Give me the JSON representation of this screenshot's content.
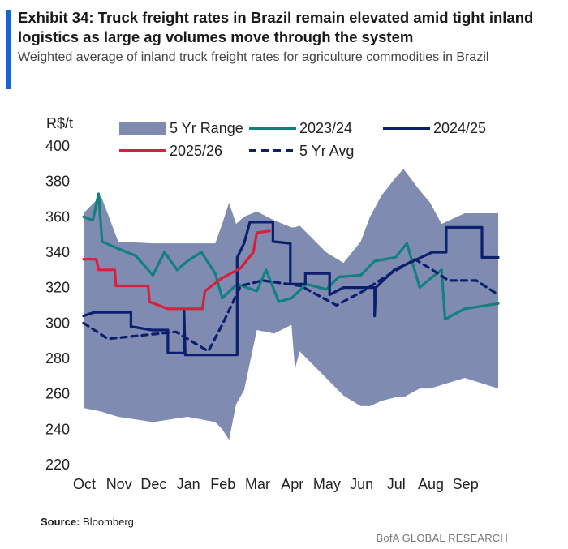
{
  "title": "Exhibit 34: Truck freight rates in Brazil remain elevated amid tight inland logistics as large ag volumes move through the system",
  "subtitle": "Weighted average of inland truck freight rates for agriculture commodities in Brazil",
  "source_label": "Source:",
  "source_value": "Bloomberg",
  "brand": "BofA GLOBAL RESEARCH",
  "chart_data": {
    "type": "line",
    "title": "Exhibit 34: Truck freight rates in Brazil remain elevated amid tight inland logistics as large ag volumes move through the system",
    "ylabel": "R$/t",
    "ylim": [
      220,
      400
    ],
    "yticks": [
      220,
      240,
      260,
      280,
      300,
      320,
      340,
      360,
      380,
      400
    ],
    "xticks": [
      "Oct",
      "Nov",
      "Dec",
      "Jan",
      "Feb",
      "Mar",
      "Apr",
      "May",
      "Jun",
      "Jul",
      "Aug",
      "Sep"
    ],
    "grid": false,
    "legend": "top",
    "colors": {
      "range": "#7f8bb0",
      "s2324": "#12807f",
      "s2425": "#0b1f6e",
      "s2526": "#d6203c",
      "avg": "#0b1f6e"
    },
    "range": {
      "name": "5 Yr Range",
      "points": [
        [
          "Oct 1",
          362,
          252
        ],
        [
          "Oct 16",
          372,
          250
        ],
        [
          "Nov 1",
          346,
          247
        ],
        [
          "Dec 1",
          345,
          244
        ],
        [
          "Jan 1",
          345,
          247
        ],
        [
          "Jan 25",
          345,
          244
        ],
        [
          "Feb 1",
          356,
          240
        ],
        [
          "Feb 7",
          368,
          234
        ],
        [
          "Feb 13",
          356,
          254
        ],
        [
          "Feb 20",
          360,
          262
        ],
        [
          "Mar 1",
          363,
          296
        ],
        [
          "Mar 16",
          358,
          294
        ],
        [
          "Apr 1",
          354,
          299
        ],
        [
          "Apr 4",
          354,
          274
        ],
        [
          "Apr 8",
          355,
          284
        ],
        [
          "May 1",
          340,
          269
        ],
        [
          "May 16",
          334,
          259
        ],
        [
          "Jun 1",
          346,
          253
        ],
        [
          "Jun 9",
          360,
          253
        ],
        [
          "Jun 19",
          372,
          256
        ],
        [
          "Jul 1",
          382,
          258
        ],
        [
          "Jul 8",
          387,
          258
        ],
        [
          "Jul 22",
          375,
          263
        ],
        [
          "Aug 1",
          368,
          263
        ],
        [
          "Aug 11",
          356,
          265
        ],
        [
          "Sep 1",
          362,
          269
        ],
        [
          "Sep 30",
          362,
          263
        ]
      ]
    },
    "series": [
      {
        "name": "2023/24",
        "key": "s2324",
        "dashed": false,
        "points": [
          [
            "Oct 1",
            360
          ],
          [
            "Oct 9",
            358
          ],
          [
            "Oct 14",
            373
          ],
          [
            "Oct 17",
            346
          ],
          [
            "Nov 1",
            342
          ],
          [
            "Nov 16",
            338
          ],
          [
            "Dec 1",
            327
          ],
          [
            "Dec 11",
            340
          ],
          [
            "Dec 22",
            330
          ],
          [
            "Jan 1",
            335
          ],
          [
            "Jan 13",
            340
          ],
          [
            "Jan 25",
            328
          ],
          [
            "Feb 1",
            314
          ],
          [
            "Feb 14",
            322
          ],
          [
            "Mar 1",
            318
          ],
          [
            "Mar 9",
            330
          ],
          [
            "Mar 20",
            312
          ],
          [
            "Apr 1",
            314
          ],
          [
            "Apr 14",
            322
          ],
          [
            "May 1",
            319
          ],
          [
            "May 12",
            326
          ],
          [
            "Jun 1",
            327
          ],
          [
            "Jun 13",
            335
          ],
          [
            "Jul 1",
            337
          ],
          [
            "Jul 11",
            345
          ],
          [
            "Jul 22",
            320
          ],
          [
            "Aug 1",
            325
          ],
          [
            "Aug 11",
            330
          ],
          [
            "Aug 14",
            302
          ],
          [
            "Aug 22",
            305
          ],
          [
            "Sep 1",
            308
          ],
          [
            "Sep 30",
            311
          ]
        ]
      },
      {
        "name": "2024/25",
        "key": "s2425",
        "dashed": false,
        "points": [
          [
            "Oct 1",
            304
          ],
          [
            "Oct 10",
            306
          ],
          [
            "Nov 12",
            306
          ],
          [
            "Nov 12",
            298
          ],
          [
            "Nov 30",
            296
          ],
          [
            "Dec 14",
            296
          ],
          [
            "Dec 14",
            283
          ],
          [
            "Dec 28",
            283
          ],
          [
            "Dec 28",
            307
          ],
          [
            "Dec 29",
            282
          ],
          [
            "Feb 14",
            282
          ],
          [
            "Feb 14",
            337
          ],
          [
            "Feb 20",
            345
          ],
          [
            "Feb 25",
            357
          ],
          [
            "Mar 15",
            357
          ],
          [
            "Mar 15",
            346
          ],
          [
            "Mar 30",
            345
          ],
          [
            "Mar 30",
            322
          ],
          [
            "Apr 13",
            322
          ],
          [
            "Apr 13",
            328
          ],
          [
            "May 4",
            328
          ],
          [
            "May 4",
            316
          ],
          [
            "May 16",
            320
          ],
          [
            "Jun 13",
            320
          ],
          [
            "Jun 13",
            304
          ],
          [
            "Jun 14",
            320
          ],
          [
            "Jun 30",
            330
          ],
          [
            "Aug 3",
            340
          ],
          [
            "Aug 15",
            340
          ],
          [
            "Aug 15",
            354
          ],
          [
            "Sep 16",
            354
          ],
          [
            "Sep 16",
            337
          ],
          [
            "Sep 30",
            337
          ]
        ]
      },
      {
        "name": "2025/26",
        "key": "s2526",
        "dashed": false,
        "points": [
          [
            "Oct 1",
            336
          ],
          [
            "Oct 12",
            336
          ],
          [
            "Oct 14",
            330
          ],
          [
            "Oct 28",
            330
          ],
          [
            "Oct 29",
            321
          ],
          [
            "Nov 27",
            321
          ],
          [
            "Nov 28",
            312
          ],
          [
            "Dec 14",
            308
          ],
          [
            "Jan 14",
            308
          ],
          [
            "Jan 16",
            318
          ],
          [
            "Jan 30",
            325
          ],
          [
            "Feb 17",
            331
          ],
          [
            "Feb 28",
            340
          ],
          [
            "Mar 1",
            351
          ],
          [
            "Mar 12",
            352
          ]
        ]
      },
      {
        "name": "5 Yr Avg",
        "key": "avg",
        "dashed": true,
        "points": [
          [
            "Oct 1",
            300
          ],
          [
            "Oct 22",
            291
          ],
          [
            "Dec 21",
            295
          ],
          [
            "Jan 19",
            284
          ],
          [
            "Feb 1",
            299
          ],
          [
            "Feb 17",
            321
          ],
          [
            "Mar 6",
            324
          ],
          [
            "Apr 9",
            321
          ],
          [
            "May 10",
            310
          ],
          [
            "Jun 3",
            318
          ],
          [
            "Jun 27",
            328
          ],
          [
            "Jul 18",
            336
          ],
          [
            "Aug 3",
            330
          ],
          [
            "Aug 17",
            324
          ],
          [
            "Sep 11",
            324
          ],
          [
            "Sep 30",
            316
          ]
        ]
      }
    ]
  }
}
